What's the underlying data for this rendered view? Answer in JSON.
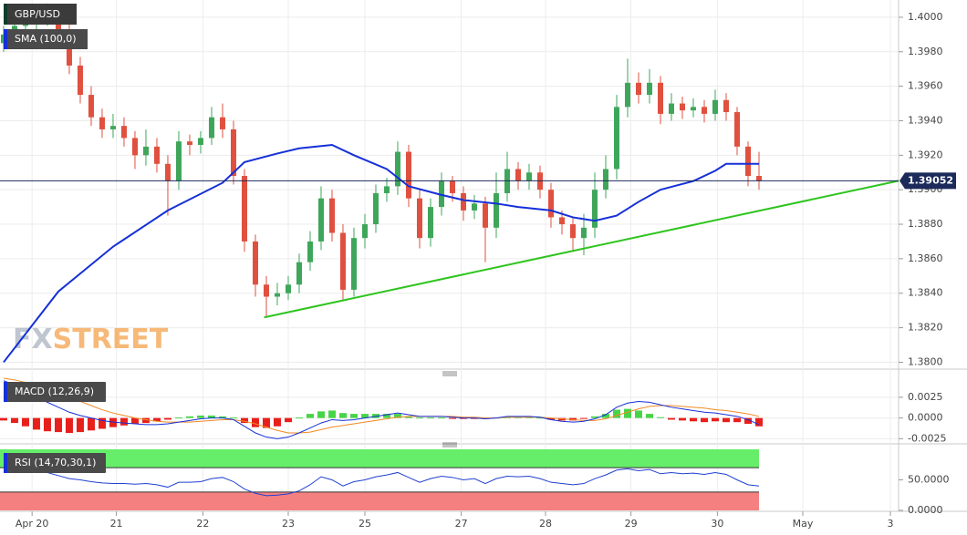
{
  "chart_data": [
    {
      "type": "candlestick",
      "title": "GBP/USD",
      "x": [
        0,
        1,
        2,
        3,
        4,
        5,
        6,
        7,
        8,
        9,
        10,
        11,
        12,
        13,
        14,
        15,
        16,
        17,
        18,
        19,
        20,
        21,
        22,
        23,
        24,
        25,
        26,
        27,
        28,
        29,
        30,
        31,
        32,
        33,
        34,
        35,
        36,
        37,
        38,
        39,
        40,
        41,
        42,
        43,
        44,
        45,
        46,
        47,
        48,
        49,
        50,
        51,
        52,
        53,
        54,
        55,
        56,
        57,
        58,
        59,
        60,
        61,
        62,
        63,
        64,
        65,
        66,
        67,
        68,
        69
      ],
      "open": [
        1.3985,
        1.399,
        1.3995,
        1.3998,
        1.4,
        1.4002,
        1.3992,
        1.3972,
        1.3955,
        1.3942,
        1.3935,
        1.3937,
        1.393,
        1.392,
        1.3925,
        1.3915,
        1.3905,
        1.3928,
        1.3926,
        1.393,
        1.3942,
        1.3935,
        1.3908,
        1.387,
        1.3845,
        1.3838,
        1.384,
        1.3845,
        1.3858,
        1.387,
        1.3895,
        1.3875,
        1.3842,
        1.3872,
        1.388,
        1.3898,
        1.3902,
        1.3922,
        1.3895,
        1.3872,
        1.389,
        1.3905,
        1.3898,
        1.3888,
        1.3892,
        1.3878,
        1.3898,
        1.3912,
        1.3905,
        1.391,
        1.39,
        1.3884,
        1.388,
        1.3872,
        1.3878,
        1.39,
        1.3912,
        1.3948,
        1.3962,
        1.3955,
        1.3962,
        1.3944,
        1.395,
        1.3946,
        1.3948,
        1.3944,
        1.3952,
        1.3945,
        1.3925,
        1.3908
      ],
      "high": [
        1.3995,
        1.4,
        1.4003,
        1.4006,
        1.4008,
        1.4007,
        1.3996,
        1.3977,
        1.396,
        1.3947,
        1.3944,
        1.3942,
        1.3934,
        1.3935,
        1.393,
        1.392,
        1.3934,
        1.3932,
        1.3934,
        1.3948,
        1.395,
        1.394,
        1.3912,
        1.3874,
        1.385,
        1.3846,
        1.385,
        1.3863,
        1.3876,
        1.3902,
        1.39,
        1.388,
        1.3878,
        1.3886,
        1.3903,
        1.3907,
        1.3928,
        1.3926,
        1.39,
        1.3895,
        1.391,
        1.3908,
        1.3902,
        1.3897,
        1.3896,
        1.391,
        1.3922,
        1.3916,
        1.3915,
        1.3914,
        1.3904,
        1.3888,
        1.3884,
        1.3886,
        1.391,
        1.392,
        1.3955,
        1.3976,
        1.3968,
        1.397,
        1.3966,
        1.3956,
        1.3954,
        1.3953,
        1.3952,
        1.3958,
        1.3956,
        1.3948,
        1.3928,
        1.3922
      ],
      "low": [
        1.398,
        1.3984,
        1.399,
        1.3993,
        1.3995,
        1.3987,
        1.3967,
        1.395,
        1.3937,
        1.393,
        1.393,
        1.3925,
        1.3912,
        1.3914,
        1.391,
        1.3885,
        1.39,
        1.392,
        1.3921,
        1.3926,
        1.393,
        1.3903,
        1.3864,
        1.3838,
        1.3826,
        1.3833,
        1.3836,
        1.384,
        1.3853,
        1.3865,
        1.387,
        1.3836,
        1.3838,
        1.3866,
        1.3875,
        1.3893,
        1.3897,
        1.389,
        1.3866,
        1.3867,
        1.3885,
        1.3893,
        1.3882,
        1.3883,
        1.3858,
        1.3872,
        1.3893,
        1.39,
        1.39,
        1.3895,
        1.3878,
        1.3874,
        1.3864,
        1.3862,
        1.3872,
        1.3895,
        1.3906,
        1.3942,
        1.395,
        1.395,
        1.3938,
        1.394,
        1.3941,
        1.3942,
        1.3939,
        1.394,
        1.394,
        1.392,
        1.3902,
        1.39
      ],
      "close": [
        1.399,
        1.3995,
        1.3998,
        1.4,
        1.4002,
        1.3992,
        1.3972,
        1.3955,
        1.3942,
        1.3935,
        1.3937,
        1.393,
        1.392,
        1.3925,
        1.3915,
        1.3905,
        1.3928,
        1.3926,
        1.393,
        1.3942,
        1.3935,
        1.3908,
        1.387,
        1.3845,
        1.3838,
        1.384,
        1.3845,
        1.3858,
        1.387,
        1.3895,
        1.3875,
        1.3842,
        1.3872,
        1.388,
        1.3898,
        1.3902,
        1.3922,
        1.3895,
        1.3872,
        1.389,
        1.3905,
        1.3898,
        1.3888,
        1.3892,
        1.3878,
        1.3898,
        1.3912,
        1.3905,
        1.391,
        1.39,
        1.3884,
        1.388,
        1.3872,
        1.3878,
        1.39,
        1.3912,
        1.3948,
        1.3962,
        1.3955,
        1.3962,
        1.3944,
        1.395,
        1.3946,
        1.3948,
        1.3944,
        1.3952,
        1.3945,
        1.3925,
        1.3908,
        1.3905
      ],
      "up_color": "#3ea65a",
      "down_color": "#e0503f",
      "xlim": [
        -0.33,
        81.75
      ],
      "ylim": [
        1.3796,
        1.401
      ],
      "yticks": [
        {
          "value": 1.4,
          "label": "1.4000"
        },
        {
          "value": 1.398,
          "label": "1.3980"
        },
        {
          "value": 1.396,
          "label": "1.3960"
        },
        {
          "value": 1.394,
          "label": "1.3940"
        },
        {
          "value": 1.392,
          "label": "1.3920"
        },
        {
          "value": 1.39,
          "label": "1.3900"
        },
        {
          "value": 1.388,
          "label": "1.3880"
        },
        {
          "value": 1.386,
          "label": "1.3860"
        },
        {
          "value": 1.384,
          "label": "1.3840"
        },
        {
          "value": 1.382,
          "label": "1.3820"
        },
        {
          "value": 1.38,
          "label": "1.3800"
        }
      ],
      "grid": true,
      "series": [
        {
          "name": "SMA (100,0)",
          "color": "#1530d8",
          "x": [
            0,
            5,
            10,
            15,
            20,
            22,
            25,
            27,
            30,
            32,
            35,
            37,
            40,
            42,
            45,
            47,
            50,
            52,
            54,
            56,
            58,
            60,
            63,
            65,
            66,
            69
          ],
          "values": [
            1.38,
            1.3841,
            1.3867,
            1.3888,
            1.3904,
            1.3916,
            1.3921,
            1.3924,
            1.3926,
            1.392,
            1.3912,
            1.3902,
            1.3897,
            1.3894,
            1.3892,
            1.389,
            1.3888,
            1.3884,
            1.3882,
            1.3885,
            1.3893,
            1.39,
            1.3905,
            1.3911,
            1.3915,
            1.3915
          ]
        }
      ],
      "trendline": {
        "color": "#2ec41e",
        "x": [
          23.8,
          81.75
        ],
        "values": [
          1.3826,
          1.39052
        ]
      },
      "last_price": 1.39052,
      "last_price_color": "#1b2a5a",
      "watermark": {
        "left": "FX",
        "right": "STREET"
      }
    },
    {
      "type": "macd",
      "title": "MACD (12,26,9)",
      "label_color": "#1530d8",
      "xlim": [
        -0.33,
        81.75
      ],
      "ylim": [
        -0.0029,
        0.0048
      ],
      "yticks": [
        {
          "value": 0.0025,
          "label": "0.0025"
        },
        {
          "value": 0,
          "label": "0.0000"
        },
        {
          "value": -0.0025,
          "label": "-0.0025"
        }
      ],
      "macd": {
        "color": "#1530d8",
        "values": [
          0.0045,
          0.004,
          0.0033,
          0.0025,
          0.0019,
          0.0013,
          0.0007,
          0.0003,
          0.0,
          -0.0003,
          -0.0005,
          -0.0006,
          -0.0007,
          -0.0008,
          -0.0008,
          -0.0007,
          -0.0005,
          -0.0003,
          -0.0001,
          0.0,
          0.0,
          -0.0002,
          -0.001,
          -0.0018,
          -0.0023,
          -0.0025,
          -0.0023,
          -0.0018,
          -0.0012,
          -0.0006,
          -0.0002,
          -0.0003,
          -0.0002,
          0.0,
          0.0002,
          0.0004,
          0.0006,
          0.0004,
          0.0002,
          0.0002,
          0.0002,
          0.0001,
          0.0,
          0.0,
          -0.0001,
          0.0,
          0.0002,
          0.0002,
          0.0002,
          0.0001,
          -0.0002,
          -0.0004,
          -0.0005,
          -0.0004,
          -0.0001,
          0.0004,
          0.0013,
          0.0018,
          0.002,
          0.0019,
          0.0016,
          0.0013,
          0.0011,
          0.0009,
          0.0007,
          0.0006,
          0.0004,
          0.0002,
          -0.0002,
          -0.0008
        ]
      },
      "signal": {
        "color": "#f08a24",
        "values": [
          0.0048,
          0.0046,
          0.0043,
          0.0039,
          0.0035,
          0.003,
          0.0025,
          0.002,
          0.0015,
          0.001,
          0.0006,
          0.0003,
          0.0,
          -0.0002,
          -0.0004,
          -0.0005,
          -0.0005,
          -0.0005,
          -0.0004,
          -0.0003,
          -0.0002,
          -0.0002,
          -0.0004,
          -0.0007,
          -0.0011,
          -0.0015,
          -0.0018,
          -0.0018,
          -0.0017,
          -0.0014,
          -0.0011,
          -0.0009,
          -0.0007,
          -0.0005,
          -0.0003,
          -0.0001,
          0.0001,
          0.0002,
          0.0002,
          0.0002,
          0.0002,
          0.0002,
          0.0001,
          0.0001,
          0.0,
          0.0,
          0.0001,
          0.0001,
          0.0001,
          0.0001,
          0.0,
          -0.0001,
          -0.0002,
          -0.0003,
          -0.0003,
          -0.0001,
          0.0003,
          0.0007,
          0.0011,
          0.0014,
          0.0015,
          0.0015,
          0.0014,
          0.0013,
          0.0012,
          0.001,
          0.0009,
          0.0007,
          0.0005,
          0.0002
        ]
      },
      "histogram": {
        "up_color": "#47d447",
        "down_color": "#e8201c",
        "values": [
          -0.0003,
          -0.0006,
          -0.001,
          -0.0014,
          -0.0016,
          -0.0017,
          -0.0018,
          -0.0017,
          -0.0015,
          -0.0013,
          -0.0011,
          -0.0009,
          -0.0007,
          -0.0006,
          -0.0004,
          -0.0002,
          0.0,
          0.0002,
          0.0003,
          0.0003,
          0.0002,
          0.0,
          -0.0006,
          -0.0011,
          -0.0012,
          -0.001,
          -0.0005,
          0.0,
          0.0005,
          0.0008,
          0.0009,
          0.0006,
          0.0005,
          0.0005,
          0.0005,
          0.0005,
          0.0005,
          0.0002,
          0.0,
          0.0,
          0.0,
          -0.0001,
          -0.0001,
          -0.0001,
          -0.0001,
          0.0,
          0.0001,
          0.0001,
          0.0001,
          0.0,
          -0.0002,
          -0.0003,
          -0.0003,
          -0.0001,
          0.0002,
          0.0005,
          0.001,
          0.0011,
          0.0009,
          0.0005,
          0.0001,
          -0.0002,
          -0.0003,
          -0.0004,
          -0.0005,
          -0.0004,
          -0.0005,
          -0.0005,
          -0.0007,
          -0.001
        ]
      }
    },
    {
      "type": "rsi",
      "title": "RSI (14,70,30,1)",
      "label_color": "#1530d8",
      "xlim": [
        -0.33,
        81.75
      ],
      "ylim": [
        0,
        100
      ],
      "yticks": [
        {
          "value": 50,
          "label": "50.0000"
        },
        {
          "value": 0,
          "label": "0.0000"
        }
      ],
      "upper_band": 70,
      "lower_band": 30,
      "upper_color": "#66ee6a",
      "lower_color": "#f58080",
      "line": {
        "color": "#2040d0",
        "values": [
          80,
          76,
          72,
          68,
          62,
          57,
          52,
          50,
          47,
          45,
          44,
          44,
          43,
          44,
          42,
          38,
          46,
          46,
          47,
          52,
          54,
          47,
          35,
          28,
          24,
          25,
          27,
          32,
          42,
          55,
          50,
          40,
          47,
          50,
          55,
          58,
          62,
          54,
          46,
          52,
          56,
          54,
          50,
          52,
          44,
          52,
          56,
          55,
          56,
          52,
          46,
          44,
          42,
          44,
          52,
          58,
          66,
          68,
          65,
          67,
          60,
          62,
          60,
          61,
          59,
          62,
          59,
          50,
          42,
          40
        ]
      },
      "xticks": [
        {
          "value": 2.6,
          "label": "Apr 20"
        },
        {
          "value": 10.3,
          "label": "21"
        },
        {
          "value": 18.2,
          "label": "22"
        },
        {
          "value": 26,
          "label": "23"
        },
        {
          "value": 33,
          "label": "25"
        },
        {
          "value": 41.8,
          "label": "27"
        },
        {
          "value": 49.5,
          "label": "28"
        },
        {
          "value": 57.3,
          "label": "29"
        },
        {
          "value": 65.2,
          "label": "30"
        },
        {
          "value": 73,
          "label": "May"
        },
        {
          "value": 81,
          "label": "3"
        }
      ]
    }
  ]
}
